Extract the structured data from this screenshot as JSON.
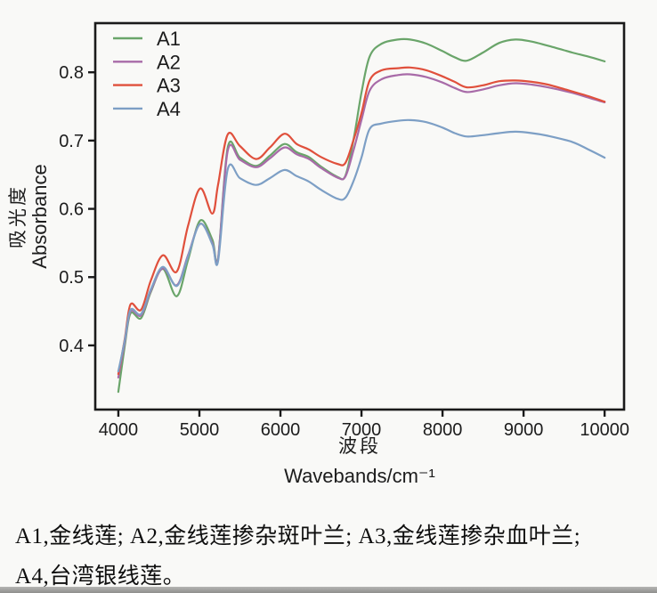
{
  "figure": {
    "caption_lines": [
      "A1,金线莲; A2,金线莲掺杂斑叶兰; A3,金线莲掺杂血叶兰;",
      "A4,台湾银线莲。"
    ]
  },
  "chart_data": {
    "type": "line",
    "title": "",
    "xlabel_zh": "波段",
    "xlabel_en": "Wavebands/cm⁻¹",
    "ylabel_zh": "吸光度",
    "ylabel_en": "Absorbance",
    "xlim": [
      3715,
      10240
    ],
    "ylim": [
      0.306,
      0.872
    ],
    "grid": false,
    "legend_position": "upper-left-inside",
    "axis_color": "#1a1a1a",
    "x_ticks": [
      4000,
      5000,
      6000,
      7000,
      8000,
      9000,
      10000
    ],
    "x_tick_labels": [
      "4000",
      "5000",
      "6000",
      "7000",
      "8000",
      "9000",
      "10000"
    ],
    "y_ticks": [
      0.4,
      0.5,
      0.6,
      0.7,
      0.8
    ],
    "y_tick_labels": [
      "0.4",
      "0.5",
      "0.6",
      "0.7",
      "0.8"
    ],
    "x": [
      4000,
      4080,
      4150,
      4280,
      4400,
      4550,
      4720,
      4860,
      5010,
      5160,
      5230,
      5350,
      5500,
      5700,
      5870,
      6050,
      6200,
      6350,
      6500,
      6700,
      6800,
      6900,
      7000,
      7100,
      7250,
      7450,
      7600,
      7800,
      8000,
      8150,
      8300,
      8500,
      8700,
      8900,
      9100,
      9300,
      9600,
      9800,
      10000
    ],
    "series": [
      {
        "name": "A1",
        "color": "#6aa56a",
        "values": [
          0.332,
          0.4,
          0.447,
          0.44,
          0.478,
          0.512,
          0.472,
          0.525,
          0.583,
          0.555,
          0.527,
          0.69,
          0.675,
          0.663,
          0.678,
          0.695,
          0.683,
          0.676,
          0.662,
          0.647,
          0.648,
          0.7,
          0.77,
          0.823,
          0.842,
          0.848,
          0.848,
          0.842,
          0.831,
          0.822,
          0.817,
          0.829,
          0.843,
          0.848,
          0.845,
          0.839,
          0.829,
          0.823,
          0.816
        ]
      },
      {
        "name": "A2",
        "color": "#a86ba8",
        "values": [
          0.353,
          0.405,
          0.45,
          0.444,
          0.48,
          0.513,
          0.488,
          0.532,
          0.578,
          0.55,
          0.526,
          0.685,
          0.672,
          0.661,
          0.674,
          0.69,
          0.68,
          0.673,
          0.66,
          0.646,
          0.647,
          0.685,
          0.73,
          0.773,
          0.79,
          0.796,
          0.797,
          0.793,
          0.785,
          0.777,
          0.771,
          0.775,
          0.781,
          0.784,
          0.782,
          0.778,
          0.77,
          0.763,
          0.756
        ]
      },
      {
        "name": "A3",
        "color": "#e0503c",
        "values": [
          0.358,
          0.41,
          0.46,
          0.452,
          0.495,
          0.532,
          0.508,
          0.575,
          0.63,
          0.593,
          0.635,
          0.709,
          0.692,
          0.673,
          0.69,
          0.71,
          0.695,
          0.687,
          0.676,
          0.666,
          0.667,
          0.7,
          0.74,
          0.788,
          0.803,
          0.806,
          0.807,
          0.803,
          0.794,
          0.786,
          0.778,
          0.781,
          0.787,
          0.788,
          0.786,
          0.782,
          0.772,
          0.765,
          0.757
        ]
      },
      {
        "name": "A4",
        "color": "#7d9fc5",
        "values": [
          0.362,
          0.408,
          0.452,
          0.446,
          0.482,
          0.515,
          0.487,
          0.53,
          0.578,
          0.548,
          0.523,
          0.658,
          0.645,
          0.635,
          0.645,
          0.657,
          0.648,
          0.64,
          0.628,
          0.615,
          0.616,
          0.64,
          0.675,
          0.717,
          0.725,
          0.729,
          0.73,
          0.727,
          0.719,
          0.711,
          0.706,
          0.708,
          0.711,
          0.713,
          0.711,
          0.707,
          0.698,
          0.687,
          0.675
        ]
      }
    ]
  }
}
